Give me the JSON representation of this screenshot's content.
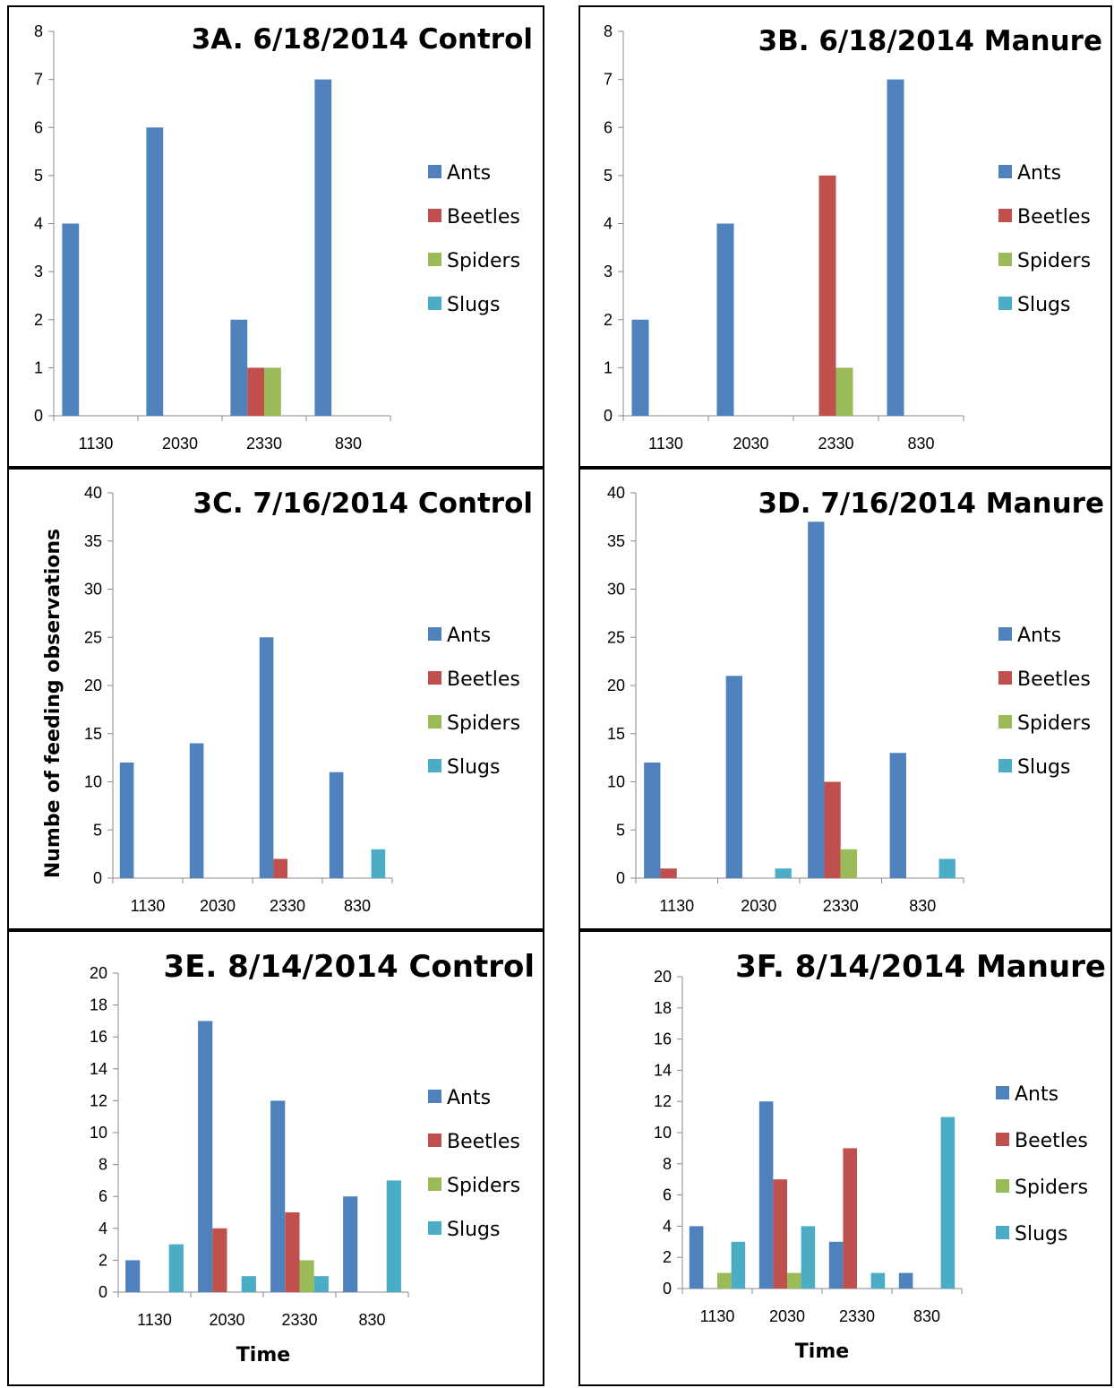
{
  "chart_data": [
    {
      "panel_id": "3A",
      "type": "bar",
      "title": "3A. 6/18/2014 Control",
      "categories": [
        "1130",
        "2030",
        "2330",
        "830"
      ],
      "series": [
        {
          "name": "Ants",
          "values": [
            4,
            6,
            2,
            7
          ]
        },
        {
          "name": "Beetles",
          "values": [
            0,
            0,
            1,
            0
          ]
        },
        {
          "name": "Spiders",
          "values": [
            0,
            0,
            1,
            0
          ]
        },
        {
          "name": "Slugs",
          "values": [
            0,
            0,
            0,
            0
          ]
        }
      ],
      "ylim": [
        0,
        8
      ],
      "ystep": 1,
      "xlabel": "",
      "ylabel": "",
      "legend": "right"
    },
    {
      "panel_id": "3B",
      "type": "bar",
      "title": "3B. 6/18/2014 Manure",
      "categories": [
        "1130",
        "2030",
        "2330",
        "830"
      ],
      "series": [
        {
          "name": "Ants",
          "values": [
            2,
            4,
            0,
            7
          ]
        },
        {
          "name": "Beetles",
          "values": [
            0,
            0,
            5,
            0
          ]
        },
        {
          "name": "Spiders",
          "values": [
            0,
            0,
            1,
            0
          ]
        },
        {
          "name": "Slugs",
          "values": [
            0,
            0,
            0,
            0
          ]
        }
      ],
      "ylim": [
        0,
        8
      ],
      "ystep": 1,
      "xlabel": "",
      "ylabel": "",
      "legend": "right"
    },
    {
      "panel_id": "3C",
      "type": "bar",
      "title": "3C. 7/16/2014 Control",
      "categories": [
        "1130",
        "2030",
        "2330",
        "830"
      ],
      "series": [
        {
          "name": "Ants",
          "values": [
            12,
            14,
            25,
            11
          ]
        },
        {
          "name": "Beetles",
          "values": [
            0,
            0,
            2,
            0
          ]
        },
        {
          "name": "Spiders",
          "values": [
            0,
            0,
            0,
            0
          ]
        },
        {
          "name": "Slugs",
          "values": [
            0,
            0,
            0,
            3
          ]
        }
      ],
      "ylim": [
        0,
        40
      ],
      "ystep": 5,
      "xlabel": "",
      "ylabel": "Numbe of feeding observations",
      "legend": "right"
    },
    {
      "panel_id": "3D",
      "type": "bar",
      "title": "3D. 7/16/2014 Manure",
      "categories": [
        "1130",
        "2030",
        "2330",
        "830"
      ],
      "series": [
        {
          "name": "Ants",
          "values": [
            12,
            21,
            37,
            13
          ]
        },
        {
          "name": "Beetles",
          "values": [
            1,
            0,
            10,
            0
          ]
        },
        {
          "name": "Spiders",
          "values": [
            0,
            0,
            3,
            0
          ]
        },
        {
          "name": "Slugs",
          "values": [
            0,
            1,
            0,
            2
          ]
        }
      ],
      "ylim": [
        0,
        40
      ],
      "ystep": 5,
      "xlabel": "",
      "ylabel": "",
      "legend": "right"
    },
    {
      "panel_id": "3E",
      "type": "bar",
      "title": "3E. 8/14/2014 Control",
      "categories": [
        "1130",
        "2030",
        "2330",
        "830"
      ],
      "series": [
        {
          "name": "Ants",
          "values": [
            2,
            17,
            12,
            6
          ]
        },
        {
          "name": "Beetles",
          "values": [
            0,
            4,
            5,
            0
          ]
        },
        {
          "name": "Spiders",
          "values": [
            0,
            0,
            2,
            0
          ]
        },
        {
          "name": "Slugs",
          "values": [
            3,
            1,
            1,
            7
          ]
        }
      ],
      "ylim": [
        0,
        20
      ],
      "ystep": 2,
      "xlabel": "Time",
      "ylabel": "",
      "legend": "right"
    },
    {
      "panel_id": "3F",
      "type": "bar",
      "title": "3F. 8/14/2014 Manure",
      "categories": [
        "1130",
        "2030",
        "2330",
        "830"
      ],
      "series": [
        {
          "name": "Ants",
          "values": [
            4,
            12,
            3,
            1
          ]
        },
        {
          "name": "Beetles",
          "values": [
            0,
            7,
            9,
            0
          ]
        },
        {
          "name": "Spiders",
          "values": [
            1,
            1,
            0,
            0
          ]
        },
        {
          "name": "Slugs",
          "values": [
            3,
            4,
            1,
            11
          ]
        }
      ],
      "ylim": [
        0,
        20
      ],
      "ystep": 2,
      "xlabel": "Time",
      "ylabel": "",
      "legend": "right"
    }
  ],
  "colors": {
    "Ants": "#4f81bd",
    "Beetles": "#c0504d",
    "Spiders": "#9bbb59",
    "Slugs": "#4bacc6"
  }
}
